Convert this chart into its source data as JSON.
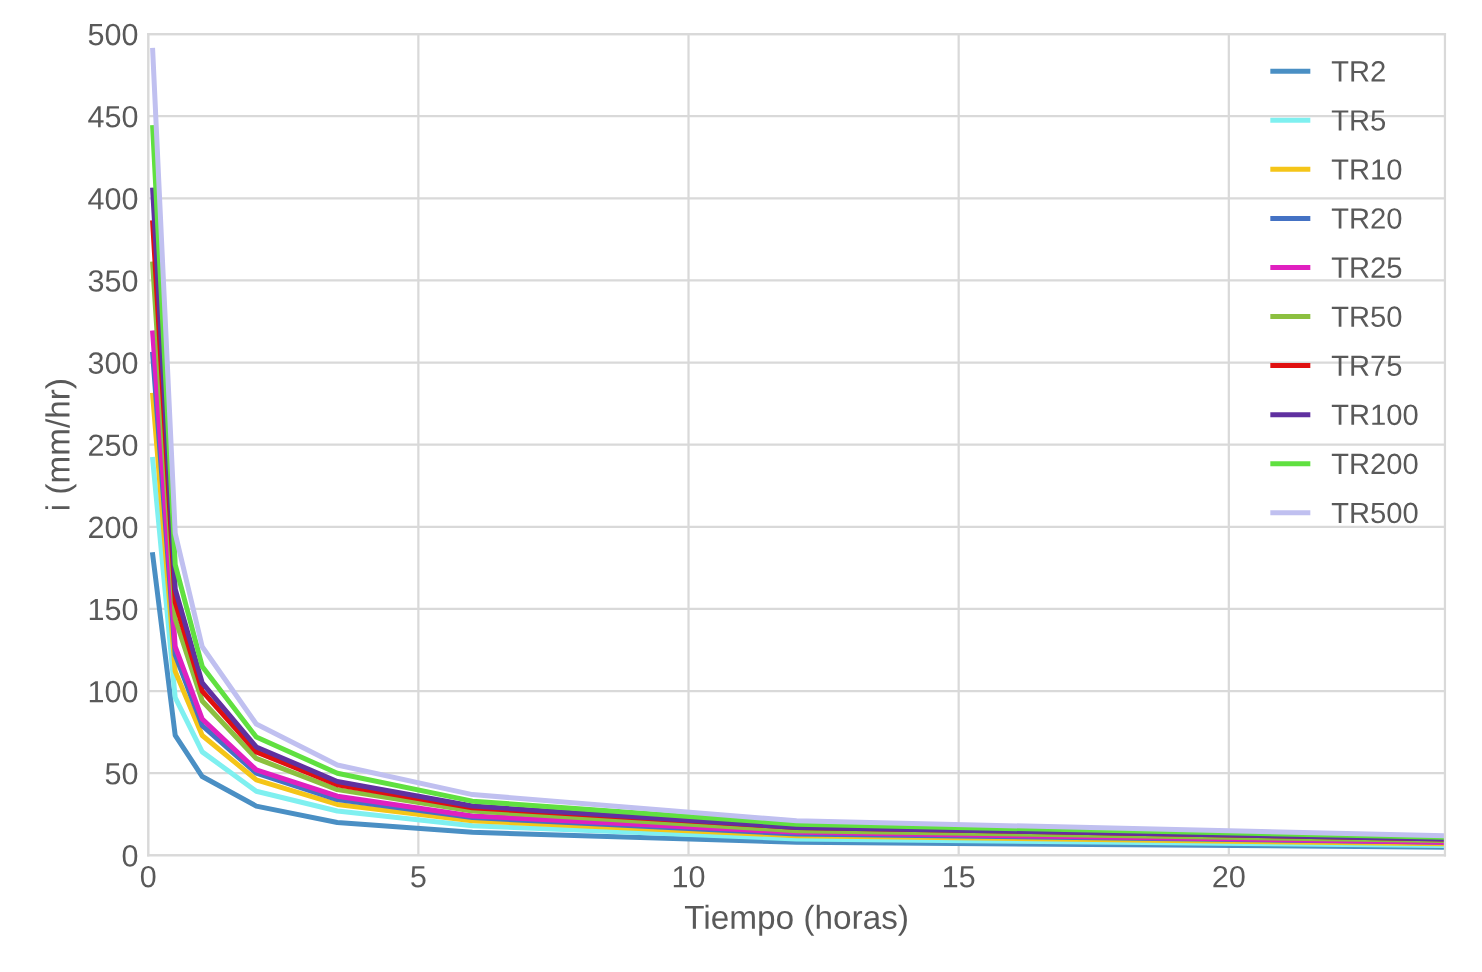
{
  "chart_data": {
    "type": "line",
    "xlabel": "Tiempo (horas)",
    "ylabel": "i (mm/hr)",
    "x": [
      0.083,
      0.5,
      1,
      2,
      3.5,
      6,
      12,
      24
    ],
    "series": [
      {
        "name": "TR2",
        "color": "#4a8fc4",
        "values": [
          183,
          73,
          48,
          30,
          20,
          14,
          8,
          5
        ]
      },
      {
        "name": "TR5",
        "color": "#7ff0f0",
        "values": [
          241,
          96,
          63,
          39,
          27,
          18,
          10,
          6
        ]
      },
      {
        "name": "TR10",
        "color": "#f5c518",
        "values": [
          280,
          112,
          73,
          46,
          31,
          21,
          12,
          7
        ]
      },
      {
        "name": "TR20",
        "color": "#4472c4",
        "values": [
          305,
          122,
          79,
          50,
          34,
          23,
          13,
          8
        ]
      },
      {
        "name": "TR25",
        "color": "#e020c0",
        "values": [
          318,
          127,
          83,
          52,
          36,
          24,
          14,
          8
        ]
      },
      {
        "name": "TR50",
        "color": "#8cc040",
        "values": [
          360,
          144,
          94,
          59,
          40,
          27,
          15,
          9
        ]
      },
      {
        "name": "TR75",
        "color": "#e01010",
        "values": [
          385,
          154,
          100,
          63,
          43,
          29,
          17,
          10
        ]
      },
      {
        "name": "TR100",
        "color": "#6030a0",
        "values": [
          405,
          162,
          105,
          66,
          45,
          30,
          17,
          10
        ]
      },
      {
        "name": "TR200",
        "color": "#60e040",
        "values": [
          443,
          177,
          115,
          72,
          50,
          33,
          19,
          11
        ]
      },
      {
        "name": "TR500",
        "color": "#c0c0f0",
        "values": [
          490,
          196,
          127,
          80,
          55,
          37,
          21,
          12
        ]
      }
    ],
    "xlim": [
      0,
      24
    ],
    "xticks": [
      0,
      5,
      10,
      15,
      20
    ],
    "ylim": [
      0,
      500
    ],
    "yticks": [
      0,
      50,
      100,
      150,
      200,
      250,
      300,
      350,
      400,
      450,
      500
    ],
    "grid": true,
    "legend": "top right",
    "marker": "none",
    "line_style": "solid"
  }
}
